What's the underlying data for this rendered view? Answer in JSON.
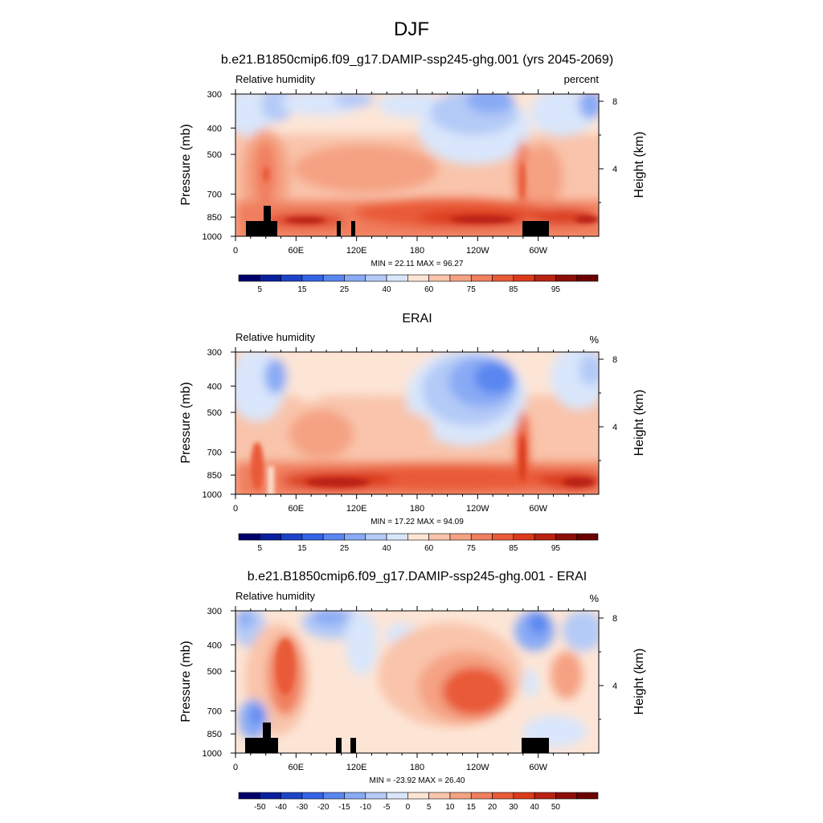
{
  "page": {
    "title": "DJF"
  },
  "chart_data": [
    {
      "type": "contour",
      "title": "b.e21.B1850cmip6.f09_g17.DAMIP-ssp245-ghg.001 (yrs 2045-2069)",
      "left_string": "Relative humidity",
      "right_string": "percent",
      "ylabel": "Pressure (mb)",
      "ylabel_right": "Height (km)",
      "x_ticks": [
        "0",
        "60E",
        "120E",
        "180",
        "120W",
        "60W"
      ],
      "y_ticks": [
        "300",
        "400",
        "500",
        "700",
        "850",
        "1000"
      ],
      "y_ticks_right": [
        "8",
        "4"
      ],
      "xlim": [
        0,
        360
      ],
      "ylim": [
        1000,
        300
      ],
      "minmax": "MIN =  22.11  MAX =  96.27",
      "min": 22.11,
      "max": 96.27,
      "levels": [
        "5",
        "15",
        "25",
        "40",
        "60",
        "75",
        "85",
        "95"
      ],
      "palette": [
        "#00006b",
        "#0a1f9e",
        "#1d43c7",
        "#3563e6",
        "#5a86f0",
        "#89aaf5",
        "#b4caf7",
        "#d9e6fb",
        "#fde5d6",
        "#f9c4ab",
        "#f5a283",
        "#f07f5e",
        "#e95a38",
        "#db3a1b",
        "#b92212",
        "#8d0e09",
        "#6b0000"
      ]
    },
    {
      "type": "contour",
      "title": "ERAI",
      "left_string": "Relative humidity",
      "right_string": "%",
      "ylabel": "Pressure (mb)",
      "ylabel_right": "Height (km)",
      "x_ticks": [
        "0",
        "60E",
        "120E",
        "180",
        "120W",
        "60W"
      ],
      "y_ticks": [
        "300",
        "400",
        "500",
        "700",
        "850",
        "1000"
      ],
      "y_ticks_right": [
        "8",
        "4"
      ],
      "xlim": [
        0,
        360
      ],
      "ylim": [
        1000,
        300
      ],
      "minmax": "MIN =  17.22  MAX =  94.09",
      "min": 17.22,
      "max": 94.09,
      "levels": [
        "5",
        "15",
        "25",
        "40",
        "60",
        "75",
        "85",
        "95"
      ],
      "palette": [
        "#00006b",
        "#0a1f9e",
        "#1d43c7",
        "#3563e6",
        "#5a86f0",
        "#89aaf5",
        "#b4caf7",
        "#d9e6fb",
        "#fde5d6",
        "#f9c4ab",
        "#f5a283",
        "#f07f5e",
        "#e95a38",
        "#db3a1b",
        "#b92212",
        "#8d0e09",
        "#6b0000"
      ]
    },
    {
      "type": "contour",
      "title": "b.e21.B1850cmip6.f09_g17.DAMIP-ssp245-ghg.001 - ERAI",
      "left_string": "Relative humidity",
      "right_string": "%",
      "ylabel": "Pressure (mb)",
      "ylabel_right": "Height (km)",
      "x_ticks": [
        "0",
        "60E",
        "120E",
        "180",
        "120W",
        "60W"
      ],
      "y_ticks": [
        "300",
        "400",
        "500",
        "700",
        "850",
        "1000"
      ],
      "y_ticks_right": [
        "8",
        "4"
      ],
      "xlim": [
        0,
        360
      ],
      "ylim": [
        1000,
        300
      ],
      "minmax": "MIN = -23.92  MAX =  26.40",
      "min": -23.92,
      "max": 26.4,
      "levels": [
        "-50",
        "-40",
        "-30",
        "-20",
        "-15",
        "-10",
        "-5",
        "0",
        "5",
        "10",
        "15",
        "20",
        "30",
        "40",
        "50"
      ],
      "palette": [
        "#00006b",
        "#0a1f9e",
        "#1d43c7",
        "#3563e6",
        "#5a86f0",
        "#89aaf5",
        "#b4caf7",
        "#d9e6fb",
        "#fde5d6",
        "#f9c4ab",
        "#f5a283",
        "#f07f5e",
        "#e95a38",
        "#db3a1b",
        "#b92212",
        "#8d0e09",
        "#6b0000"
      ]
    }
  ]
}
